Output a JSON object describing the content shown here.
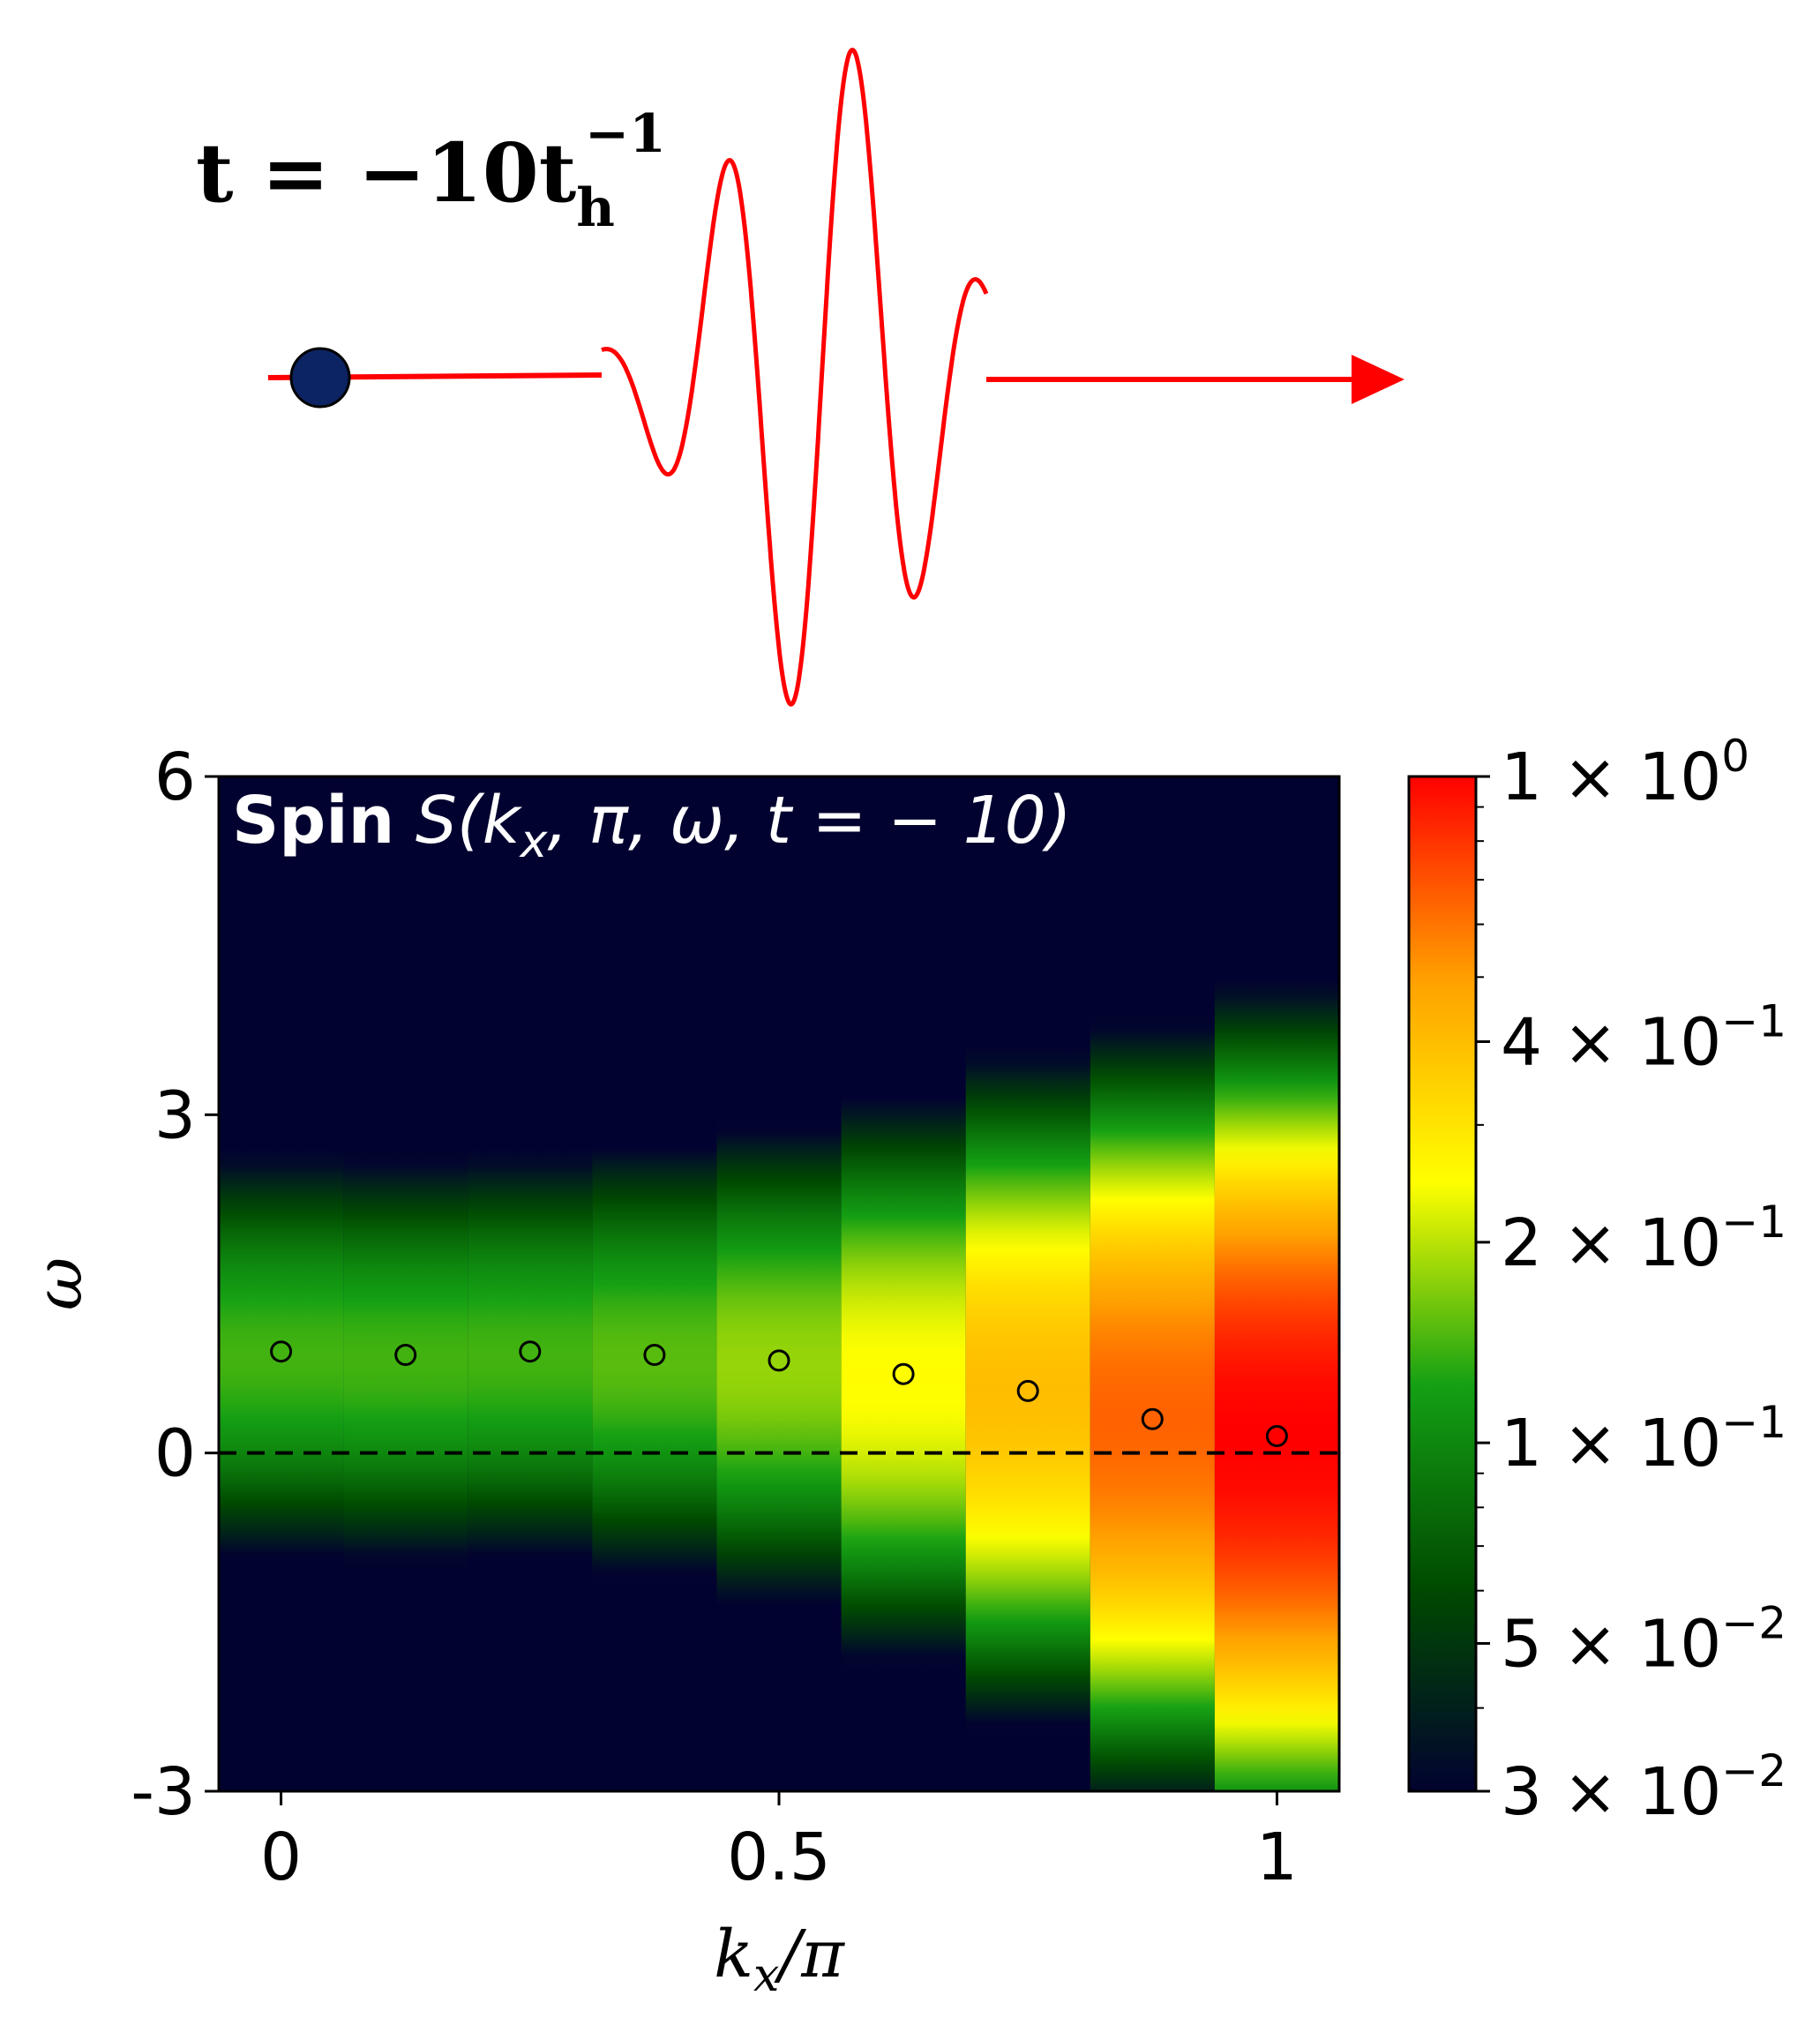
{
  "header": {
    "time_main": "t = −10t",
    "time_sub": "h",
    "time_sup": "−1"
  },
  "panel_label": {
    "bold": "Spin",
    "formula": "S(k",
    "formula_sub": "x",
    "formula_rest": ", π, ω, t = − 10)"
  },
  "colors": {
    "background": "#020230",
    "pulse": "#ff0000",
    "particle": "#0c2463",
    "dashed_line": "#000000"
  },
  "colorbar": {
    "scale": "log",
    "min": 0.03,
    "max": 1.0,
    "ticks": [
      {
        "value": 1.0,
        "mantissa": "1 × 10",
        "exp": "0"
      },
      {
        "value": 0.4,
        "mantissa": "4 × 10",
        "exp": "−1"
      },
      {
        "value": 0.2,
        "mantissa": "2 × 10",
        "exp": "−1"
      },
      {
        "value": 0.1,
        "mantissa": "1 × 10",
        "exp": "−1"
      },
      {
        "value": 0.05,
        "mantissa": "5 × 10",
        "exp": "−2"
      },
      {
        "value": 0.03,
        "mantissa": "3 × 10",
        "exp": "−2"
      }
    ],
    "colormap": [
      "#020230",
      "#004a00",
      "#14a014",
      "#ffff00",
      "#ffa000",
      "#ff0000"
    ]
  },
  "chart_data": {
    "type": "heatmap",
    "title": "",
    "xlabel": "k",
    "xlabel_sub": "x",
    "xlabel_rest": "/π",
    "ylabel": "ω",
    "xlim": [
      -0.0625,
      1.0625
    ],
    "ylim": [
      -3,
      6
    ],
    "xticks": [
      {
        "value": 0,
        "label": "0"
      },
      {
        "value": 0.5,
        "label": "0.5"
      },
      {
        "value": 1,
        "label": "1"
      }
    ],
    "yticks": [
      {
        "value": 6,
        "label": "6"
      },
      {
        "value": 3,
        "label": "3"
      },
      {
        "value": 0,
        "label": "0"
      },
      {
        "value": -3,
        "label": "-3"
      }
    ],
    "reference_line": {
      "y": 0,
      "style": "dashed"
    },
    "columns": [
      {
        "k": 0.0,
        "peak": 0.85,
        "amplitude": 0.14,
        "width": 1.0
      },
      {
        "k": 0.125,
        "peak": 0.82,
        "amplitude": 0.14,
        "width": 1.0
      },
      {
        "k": 0.25,
        "peak": 0.85,
        "amplitude": 0.14,
        "width": 1.0
      },
      {
        "k": 0.375,
        "peak": 0.82,
        "amplitude": 0.15,
        "width": 1.05
      },
      {
        "k": 0.5,
        "peak": 0.78,
        "amplitude": 0.18,
        "width": 1.1
      },
      {
        "k": 0.625,
        "peak": 0.65,
        "amplitude": 0.25,
        "width": 1.2
      },
      {
        "k": 0.75,
        "peak": 0.55,
        "amplitude": 0.4,
        "width": 1.3
      },
      {
        "k": 0.875,
        "peak": 0.3,
        "amplitude": 0.65,
        "width": 1.4
      },
      {
        "k": 1.0,
        "peak": 0.15,
        "amplitude": 1.0,
        "width": 1.5
      }
    ],
    "markers": [
      {
        "k": 0.0,
        "omega": 0.9
      },
      {
        "k": 0.125,
        "omega": 0.87
      },
      {
        "k": 0.25,
        "omega": 0.9
      },
      {
        "k": 0.375,
        "omega": 0.87
      },
      {
        "k": 0.5,
        "omega": 0.82
      },
      {
        "k": 0.625,
        "omega": 0.7
      },
      {
        "k": 0.75,
        "omega": 0.55
      },
      {
        "k": 0.875,
        "omega": 0.3
      },
      {
        "k": 1.0,
        "omega": 0.15
      }
    ]
  }
}
